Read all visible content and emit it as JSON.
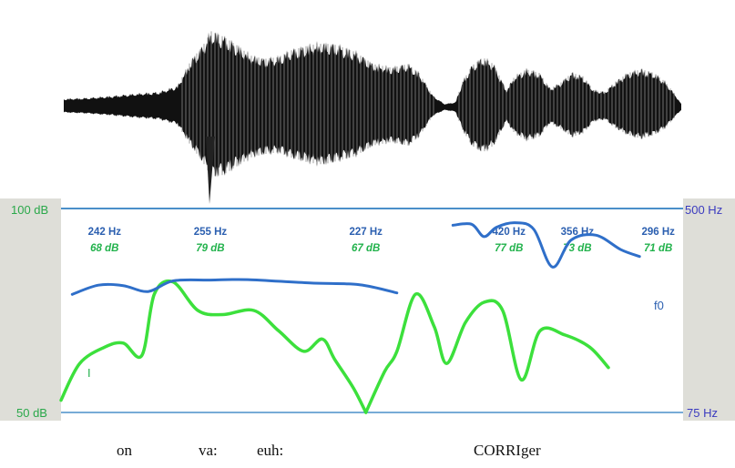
{
  "chart_data": {
    "type": "line",
    "title": "",
    "left_axis": {
      "top_label": "100 dB",
      "bottom_label": "50 dB",
      "range": [
        50,
        100
      ]
    },
    "right_axis": {
      "top_label": "500 Hz",
      "bottom_label": "75 Hz",
      "range": [
        75,
        500
      ]
    },
    "peaks": [
      {
        "hz": "242 Hz",
        "db": "68 dB",
        "x": 0.07
      },
      {
        "hz": "255 Hz",
        "db": "79 dB",
        "x": 0.24
      },
      {
        "hz": "227 Hz",
        "db": "67 dB",
        "x": 0.49
      },
      {
        "hz": "420 Hz",
        "db": "77 dB",
        "x": 0.72
      },
      {
        "hz": "356 Hz",
        "db": "73 dB",
        "x": 0.83
      },
      {
        "hz": "296 Hz",
        "db": "71 dB",
        "x": 0.96
      }
    ],
    "series": [
      {
        "name": "f0",
        "color": "#2f6fc9",
        "segments": [
          [
            [
              0.018,
              225
            ],
            [
              0.06,
              245
            ],
            [
              0.1,
              244
            ],
            [
              0.14,
              231
            ],
            [
              0.18,
              255
            ],
            [
              0.24,
              257
            ],
            [
              0.3,
              258
            ],
            [
              0.4,
              250
            ],
            [
              0.48,
              246
            ],
            [
              0.54,
              228
            ]
          ],
          [
            [
              0.63,
              428
            ],
            [
              0.66,
              432
            ],
            [
              0.68,
              385
            ],
            [
              0.7,
              420
            ],
            [
              0.73,
              438
            ],
            [
              0.76,
              412
            ],
            [
              0.79,
              290
            ],
            [
              0.82,
              373
            ],
            [
              0.86,
              390
            ],
            [
              0.9,
              341
            ],
            [
              0.93,
              320
            ]
          ]
        ]
      },
      {
        "name": "I",
        "color": "#3ce03c",
        "segments": [
          [
            [
              0.0,
              53
            ],
            [
              0.03,
              62
            ],
            [
              0.07,
              66
            ],
            [
              0.1,
              67
            ],
            [
              0.13,
              64
            ],
            [
              0.15,
              79
            ],
            [
              0.18,
              82
            ],
            [
              0.22,
              75
            ],
            [
              0.26,
              74
            ],
            [
              0.31,
              75
            ],
            [
              0.35,
              70
            ],
            [
              0.39,
              65
            ],
            [
              0.42,
              68
            ],
            [
              0.44,
              63
            ],
            [
              0.47,
              56
            ],
            [
              0.49,
              50
            ]
          ],
          [
            [
              0.49,
              50
            ],
            [
              0.52,
              60
            ],
            [
              0.54,
              65
            ],
            [
              0.57,
              79
            ],
            [
              0.6,
              71
            ],
            [
              0.62,
              62
            ],
            [
              0.65,
              72
            ],
            [
              0.68,
              77
            ],
            [
              0.71,
              75
            ],
            [
              0.74,
              58
            ],
            [
              0.77,
              70
            ],
            [
              0.81,
              69
            ],
            [
              0.85,
              66
            ],
            [
              0.88,
              61
            ]
          ]
        ]
      }
    ],
    "words": [
      "on",
      "va:",
      "euh:",
      "CORRIger"
    ]
  }
}
